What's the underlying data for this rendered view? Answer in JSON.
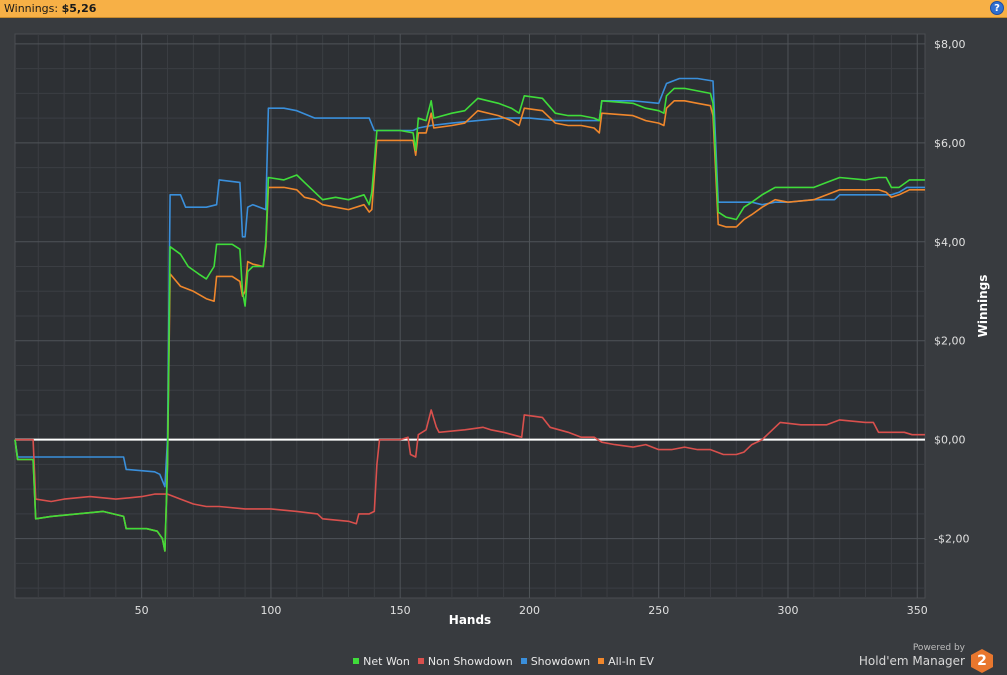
{
  "header": {
    "label": "Winnings:",
    "value": "$5,26",
    "help": "?"
  },
  "brand": {
    "line1": "Powered by",
    "line2": "Hold'em Manager",
    "logo": "2"
  },
  "chart_data": {
    "type": "line",
    "xlabel": "Hands",
    "ylabel": "Winnings",
    "xlim": [
      1,
      353
    ],
    "ylim": [
      -3.2,
      8.2
    ],
    "x_ticks": [
      50,
      100,
      150,
      200,
      250,
      300,
      350
    ],
    "y_ticks": [
      -2,
      0,
      2,
      4,
      6,
      8
    ],
    "y_tick_labels": [
      "-$2,00",
      "$0,00",
      "$2,00",
      "$4,00",
      "$6,00",
      "$8,00"
    ],
    "grid": true,
    "legend_position": "bottom-center",
    "zero_line": true,
    "series": [
      {
        "name": "Net Won",
        "color": "#3fdc3a",
        "points": [
          [
            1,
            0
          ],
          [
            2,
            -0.4
          ],
          [
            8,
            -0.4
          ],
          [
            9,
            -1.6
          ],
          [
            15,
            -1.55
          ],
          [
            25,
            -1.5
          ],
          [
            35,
            -1.45
          ],
          [
            43,
            -1.55
          ],
          [
            44,
            -1.8
          ],
          [
            52,
            -1.8
          ],
          [
            56,
            -1.85
          ],
          [
            58,
            -2.0
          ],
          [
            59,
            -2.25
          ],
          [
            60,
            -0.5
          ],
          [
            61,
            3.9
          ],
          [
            65,
            3.75
          ],
          [
            68,
            3.5
          ],
          [
            72,
            3.35
          ],
          [
            75,
            3.25
          ],
          [
            78,
            3.5
          ],
          [
            79,
            3.95
          ],
          [
            85,
            3.95
          ],
          [
            88,
            3.85
          ],
          [
            89,
            3.0
          ],
          [
            90,
            2.7
          ],
          [
            91,
            3.4
          ],
          [
            93,
            3.5
          ],
          [
            97,
            3.5
          ],
          [
            98,
            4.0
          ],
          [
            99,
            5.3
          ],
          [
            105,
            5.25
          ],
          [
            110,
            5.35
          ],
          [
            113,
            5.2
          ],
          [
            117,
            5.0
          ],
          [
            120,
            4.85
          ],
          [
            125,
            4.9
          ],
          [
            130,
            4.85
          ],
          [
            136,
            4.95
          ],
          [
            138,
            4.75
          ],
          [
            139,
            5.0
          ],
          [
            141,
            6.25
          ],
          [
            150,
            6.25
          ],
          [
            155,
            6.2
          ],
          [
            156,
            5.85
          ],
          [
            157,
            6.5
          ],
          [
            160,
            6.45
          ],
          [
            162,
            6.85
          ],
          [
            163,
            6.5
          ],
          [
            170,
            6.6
          ],
          [
            175,
            6.65
          ],
          [
            180,
            6.9
          ],
          [
            188,
            6.8
          ],
          [
            193,
            6.7
          ],
          [
            196,
            6.6
          ],
          [
            198,
            6.95
          ],
          [
            205,
            6.9
          ],
          [
            210,
            6.6
          ],
          [
            215,
            6.55
          ],
          [
            220,
            6.55
          ],
          [
            225,
            6.5
          ],
          [
            227,
            6.45
          ],
          [
            228,
            6.85
          ],
          [
            240,
            6.8
          ],
          [
            245,
            6.7
          ],
          [
            250,
            6.65
          ],
          [
            252,
            6.6
          ],
          [
            253,
            6.95
          ],
          [
            256,
            7.1
          ],
          [
            260,
            7.1
          ],
          [
            265,
            7.05
          ],
          [
            270,
            7.0
          ],
          [
            271,
            6.8
          ],
          [
            273,
            4.6
          ],
          [
            276,
            4.5
          ],
          [
            280,
            4.45
          ],
          [
            283,
            4.7
          ],
          [
            286,
            4.8
          ],
          [
            290,
            4.95
          ],
          [
            295,
            5.1
          ],
          [
            300,
            5.1
          ],
          [
            310,
            5.1
          ],
          [
            315,
            5.2
          ],
          [
            320,
            5.3
          ],
          [
            330,
            5.25
          ],
          [
            335,
            5.3
          ],
          [
            338,
            5.3
          ],
          [
            340,
            5.1
          ],
          [
            343,
            5.1
          ],
          [
            347,
            5.25
          ],
          [
            353,
            5.25
          ]
        ]
      },
      {
        "name": "Non Showdown",
        "color": "#d9504d",
        "points": [
          [
            1,
            0
          ],
          [
            2,
            0
          ],
          [
            8,
            0
          ],
          [
            9,
            -1.2
          ],
          [
            15,
            -1.25
          ],
          [
            20,
            -1.2
          ],
          [
            30,
            -1.15
          ],
          [
            40,
            -1.2
          ],
          [
            50,
            -1.15
          ],
          [
            55,
            -1.1
          ],
          [
            60,
            -1.1
          ],
          [
            65,
            -1.2
          ],
          [
            70,
            -1.3
          ],
          [
            75,
            -1.35
          ],
          [
            80,
            -1.35
          ],
          [
            90,
            -1.4
          ],
          [
            100,
            -1.4
          ],
          [
            110,
            -1.45
          ],
          [
            118,
            -1.5
          ],
          [
            120,
            -1.6
          ],
          [
            130,
            -1.65
          ],
          [
            133,
            -1.7
          ],
          [
            134,
            -1.5
          ],
          [
            138,
            -1.5
          ],
          [
            140,
            -1.45
          ],
          [
            141,
            -0.5
          ],
          [
            142,
            0
          ],
          [
            150,
            0
          ],
          [
            153,
            0.05
          ],
          [
            154,
            -0.3
          ],
          [
            156,
            -0.35
          ],
          [
            157,
            0.1
          ],
          [
            160,
            0.2
          ],
          [
            162,
            0.6
          ],
          [
            164,
            0.25
          ],
          [
            165,
            0.15
          ],
          [
            175,
            0.2
          ],
          [
            182,
            0.25
          ],
          [
            185,
            0.2
          ],
          [
            190,
            0.15
          ],
          [
            197,
            0.05
          ],
          [
            198,
            0.5
          ],
          [
            205,
            0.45
          ],
          [
            208,
            0.25
          ],
          [
            215,
            0.15
          ],
          [
            220,
            0.05
          ],
          [
            225,
            0.05
          ],
          [
            228,
            -0.05
          ],
          [
            233,
            -0.1
          ],
          [
            240,
            -0.15
          ],
          [
            245,
            -0.1
          ],
          [
            250,
            -0.2
          ],
          [
            255,
            -0.2
          ],
          [
            260,
            -0.15
          ],
          [
            265,
            -0.2
          ],
          [
            270,
            -0.2
          ],
          [
            275,
            -0.3
          ],
          [
            280,
            -0.3
          ],
          [
            283,
            -0.25
          ],
          [
            286,
            -0.1
          ],
          [
            290,
            0.0
          ],
          [
            292,
            0.1
          ],
          [
            297,
            0.35
          ],
          [
            305,
            0.3
          ],
          [
            315,
            0.3
          ],
          [
            320,
            0.4
          ],
          [
            330,
            0.35
          ],
          [
            333,
            0.35
          ],
          [
            335,
            0.15
          ],
          [
            340,
            0.15
          ],
          [
            345,
            0.15
          ],
          [
            348,
            0.1
          ],
          [
            353,
            0.1
          ]
        ]
      },
      {
        "name": "Showdown",
        "color": "#3a8fdb",
        "points": [
          [
            1,
            0
          ],
          [
            2,
            -0.35
          ],
          [
            10,
            -0.35
          ],
          [
            20,
            -0.35
          ],
          [
            30,
            -0.35
          ],
          [
            40,
            -0.35
          ],
          [
            43,
            -0.35
          ],
          [
            44,
            -0.6
          ],
          [
            55,
            -0.65
          ],
          [
            57,
            -0.7
          ],
          [
            59,
            -0.95
          ],
          [
            60,
            0
          ],
          [
            61,
            4.95
          ],
          [
            65,
            4.95
          ],
          [
            67,
            4.7
          ],
          [
            75,
            4.7
          ],
          [
            79,
            4.75
          ],
          [
            80,
            5.25
          ],
          [
            88,
            5.2
          ],
          [
            89,
            4.1
          ],
          [
            90,
            4.1
          ],
          [
            91,
            4.7
          ],
          [
            93,
            4.75
          ],
          [
            98,
            4.65
          ],
          [
            99,
            6.7
          ],
          [
            105,
            6.7
          ],
          [
            110,
            6.65
          ],
          [
            117,
            6.5
          ],
          [
            127,
            6.5
          ],
          [
            138,
            6.5
          ],
          [
            140,
            6.25
          ],
          [
            148,
            6.25
          ],
          [
            155,
            6.25
          ],
          [
            157,
            6.3
          ],
          [
            162,
            6.35
          ],
          [
            170,
            6.4
          ],
          [
            180,
            6.45
          ],
          [
            190,
            6.5
          ],
          [
            200,
            6.5
          ],
          [
            210,
            6.45
          ],
          [
            220,
            6.45
          ],
          [
            227,
            6.45
          ],
          [
            228,
            6.85
          ],
          [
            240,
            6.85
          ],
          [
            250,
            6.8
          ],
          [
            253,
            7.2
          ],
          [
            258,
            7.3
          ],
          [
            265,
            7.3
          ],
          [
            271,
            7.25
          ],
          [
            273,
            4.8
          ],
          [
            280,
            4.8
          ],
          [
            286,
            4.8
          ],
          [
            290,
            4.75
          ],
          [
            295,
            4.8
          ],
          [
            300,
            4.8
          ],
          [
            310,
            4.85
          ],
          [
            318,
            4.85
          ],
          [
            320,
            4.95
          ],
          [
            330,
            4.95
          ],
          [
            340,
            4.95
          ],
          [
            343,
            5.0
          ],
          [
            346,
            5.1
          ],
          [
            353,
            5.1
          ]
        ]
      },
      {
        "name": "All-In EV",
        "color": "#f0872c",
        "points": [
          [
            1,
            0
          ],
          [
            2,
            -0.4
          ],
          [
            8,
            -0.4
          ],
          [
            9,
            -1.6
          ],
          [
            15,
            -1.55
          ],
          [
            25,
            -1.5
          ],
          [
            35,
            -1.45
          ],
          [
            43,
            -1.55
          ],
          [
            44,
            -1.8
          ],
          [
            52,
            -1.8
          ],
          [
            56,
            -1.85
          ],
          [
            58,
            -2.0
          ],
          [
            59,
            -2.25
          ],
          [
            60,
            -0.5
          ],
          [
            61,
            3.35
          ],
          [
            65,
            3.1
          ],
          [
            70,
            3.0
          ],
          [
            75,
            2.85
          ],
          [
            78,
            2.8
          ],
          [
            79,
            3.3
          ],
          [
            85,
            3.3
          ],
          [
            88,
            3.2
          ],
          [
            89,
            2.9
          ],
          [
            90,
            3.0
          ],
          [
            91,
            3.6
          ],
          [
            93,
            3.55
          ],
          [
            97,
            3.5
          ],
          [
            98,
            3.9
          ],
          [
            99,
            5.1
          ],
          [
            105,
            5.1
          ],
          [
            110,
            5.05
          ],
          [
            113,
            4.9
          ],
          [
            117,
            4.85
          ],
          [
            120,
            4.75
          ],
          [
            125,
            4.7
          ],
          [
            130,
            4.65
          ],
          [
            136,
            4.75
          ],
          [
            138,
            4.6
          ],
          [
            139,
            4.65
          ],
          [
            141,
            6.05
          ],
          [
            150,
            6.05
          ],
          [
            155,
            6.05
          ],
          [
            156,
            5.75
          ],
          [
            157,
            6.2
          ],
          [
            160,
            6.2
          ],
          [
            162,
            6.6
          ],
          [
            163,
            6.3
          ],
          [
            170,
            6.35
          ],
          [
            175,
            6.4
          ],
          [
            180,
            6.65
          ],
          [
            188,
            6.55
          ],
          [
            193,
            6.45
          ],
          [
            196,
            6.35
          ],
          [
            198,
            6.7
          ],
          [
            205,
            6.65
          ],
          [
            210,
            6.4
          ],
          [
            215,
            6.35
          ],
          [
            220,
            6.35
          ],
          [
            225,
            6.3
          ],
          [
            227,
            6.2
          ],
          [
            228,
            6.6
          ],
          [
            240,
            6.55
          ],
          [
            245,
            6.45
          ],
          [
            250,
            6.4
          ],
          [
            252,
            6.35
          ],
          [
            253,
            6.7
          ],
          [
            256,
            6.85
          ],
          [
            260,
            6.85
          ],
          [
            265,
            6.8
          ],
          [
            270,
            6.75
          ],
          [
            271,
            6.55
          ],
          [
            273,
            4.35
          ],
          [
            276,
            4.3
          ],
          [
            280,
            4.3
          ],
          [
            283,
            4.45
          ],
          [
            286,
            4.55
          ],
          [
            290,
            4.7
          ],
          [
            295,
            4.85
          ],
          [
            300,
            4.8
          ],
          [
            310,
            4.85
          ],
          [
            315,
            4.95
          ],
          [
            320,
            5.05
          ],
          [
            330,
            5.05
          ],
          [
            335,
            5.05
          ],
          [
            338,
            5.0
          ],
          [
            340,
            4.9
          ],
          [
            343,
            4.95
          ],
          [
            347,
            5.05
          ],
          [
            353,
            5.05
          ]
        ]
      }
    ]
  }
}
